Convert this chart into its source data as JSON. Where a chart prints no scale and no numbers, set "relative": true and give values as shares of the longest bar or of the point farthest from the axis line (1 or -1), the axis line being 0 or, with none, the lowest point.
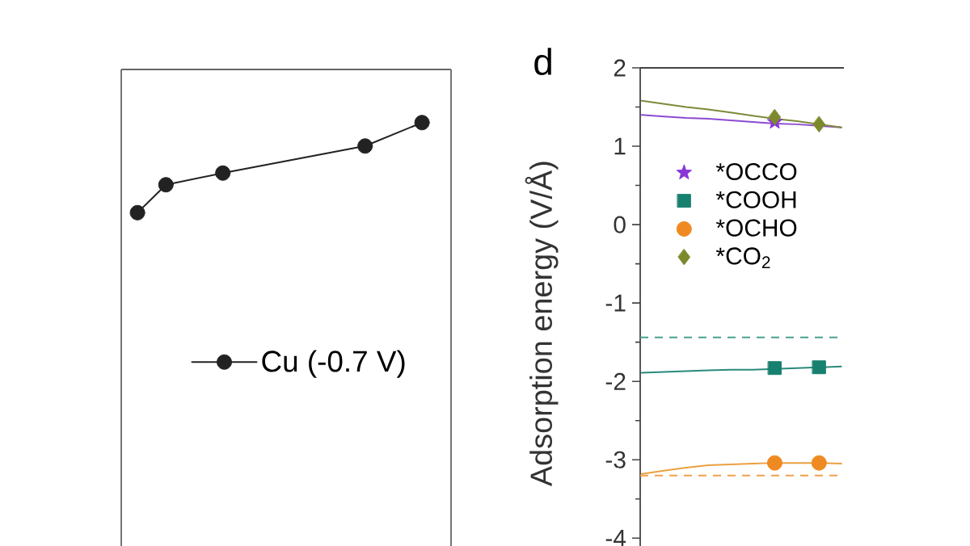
{
  "chart_data": [
    {
      "type": "line",
      "relative": true,
      "categories": [
        null,
        null,
        null,
        null,
        null,
        null,
        null,
        null,
        null,
        null,
        null
      ],
      "series": [
        {
          "name": "Cu (-0.7 V)",
          "color": "#222222",
          "values": [
            0,
            0.31,
            null,
            0.44,
            null,
            null,
            null,
            null,
            0.74,
            null,
            1
          ]
        }
      ],
      "marker": "circle",
      "legend": "right"
    },
    {
      "type": "scatter",
      "title": "d",
      "ylabel": "Adsorption energy (V/Å)",
      "categories": [
        null,
        null,
        null,
        null,
        null,
        null,
        null,
        null,
        null,
        null
      ],
      "ylim": [
        -4.1,
        2
      ],
      "yticks": [
        -4,
        {
          "value": -3.5,
          "label": null
        },
        -3,
        {
          "value": -2.5,
          "label": null
        },
        -2,
        {
          "value": -1.5,
          "label": null
        },
        -1,
        {
          "value": -0.5,
          "label": null
        },
        0,
        {
          "value": 0.5,
          "label": null
        },
        1,
        {
          "value": 1.5,
          "label": null
        },
        2
      ],
      "tick_labels": "y",
      "legend": "top left",
      "series": [
        {
          "type": "line",
          "color": "#8c4bd0",
          "values": [
            1.4,
            1.38,
            1.36,
            1.35,
            1.33,
            1.31,
            1.29,
            1.28,
            1.26,
            1.24
          ]
        },
        {
          "type": "line",
          "color": "#7d8a3a",
          "values": [
            1.58,
            1.54,
            1.5,
            1.47,
            1.43,
            1.39,
            1.35,
            1.32,
            1.28,
            1.24
          ]
        },
        {
          "type": "line",
          "color": "#2a8a7a",
          "values": [
            -1.89,
            -1.88,
            -1.87,
            -1.86,
            -1.85,
            -1.85,
            -1.84,
            -1.83,
            -1.82,
            -1.81
          ]
        },
        {
          "type": "line",
          "color": "#eaa040",
          "values": [
            -3.18,
            -3.14,
            -3.1,
            -3.07,
            -3.06,
            -3.05,
            -3.04,
            -3.04,
            -3.04,
            -3.05
          ]
        },
        {
          "name": "*OCCO",
          "marker": "star",
          "color": "#8a35d6",
          "values": [
            null,
            null,
            null,
            null,
            null,
            null,
            1.31,
            null,
            null,
            null
          ]
        },
        {
          "name": "*COOH",
          "marker": "square",
          "color": "#17806e",
          "values": [
            null,
            null,
            null,
            null,
            null,
            null,
            -1.83,
            null,
            -1.82,
            null
          ]
        },
        {
          "name": "*OCHO",
          "marker": "circle",
          "color": "#ef8a22",
          "values": [
            null,
            null,
            null,
            null,
            null,
            null,
            -3.04,
            null,
            -3.04,
            null
          ]
        },
        {
          "name": "*CO$_{2}$",
          "marker": "diamond",
          "color": "#7d8a2c",
          "values": [
            null,
            null,
            null,
            null,
            null,
            null,
            1.37,
            null,
            1.28,
            null
          ]
        }
      ],
      "ref_lines": [
        {
          "axis": "y",
          "value": -1.44,
          "color": "#4aa090",
          "line_style": "dashed"
        },
        {
          "axis": "y",
          "value": -3.2,
          "color": "#f0a050",
          "line_style": "dashed"
        }
      ]
    }
  ]
}
